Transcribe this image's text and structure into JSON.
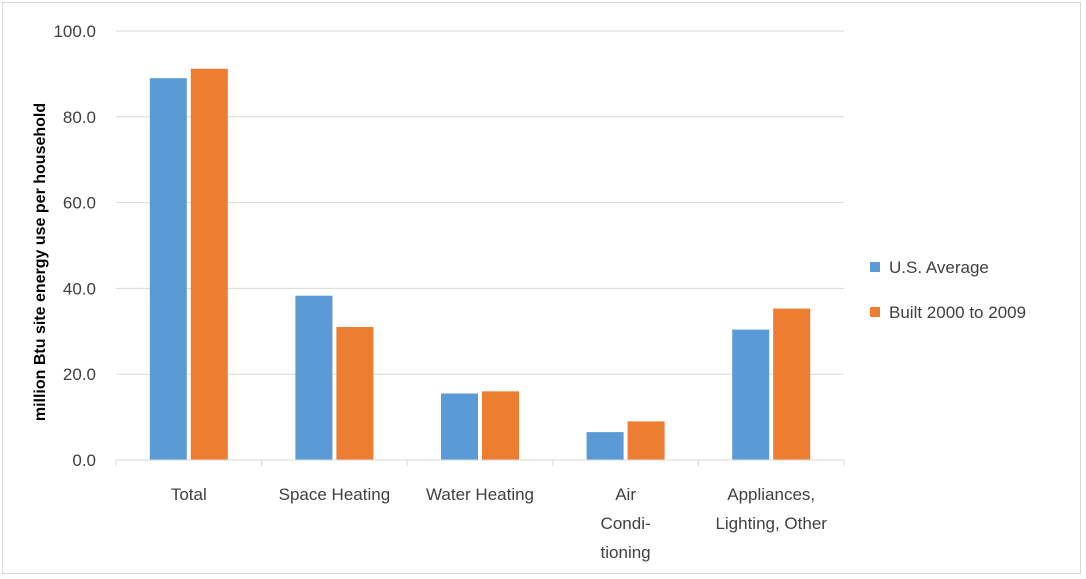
{
  "chart_data": {
    "type": "bar",
    "categories": [
      [
        "Total"
      ],
      [
        "Space Heating"
      ],
      [
        "Water Heating"
      ],
      [
        "Air",
        "Condi-",
        "tioning"
      ],
      [
        "Appliances,",
        "Lighting, Other"
      ]
    ],
    "series": [
      {
        "name": "U.S. Average",
        "color": "#5b9bd5",
        "values": [
          89.0,
          38.3,
          15.5,
          6.5,
          30.4
        ]
      },
      {
        "name": "Built 2000 to 2009",
        "color": "#ed7d31",
        "values": [
          91.2,
          31.0,
          16.0,
          9.0,
          35.3
        ]
      }
    ],
    "title": "",
    "xlabel": "",
    "ylabel": "million Btu  site energy use per household",
    "ylim": [
      0,
      100
    ],
    "yticks": [
      "0.0",
      "20.0",
      "40.0",
      "60.0",
      "80.0",
      "100.0"
    ],
    "grid": true,
    "legend_position": "right",
    "gridline_color": "#d9d9d9"
  }
}
